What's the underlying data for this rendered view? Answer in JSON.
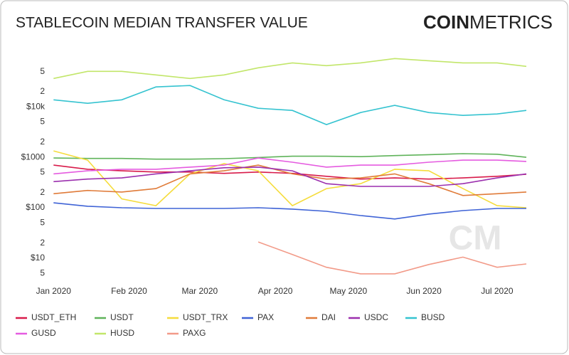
{
  "chart_data": {
    "type": "line",
    "title": "STABLECOIN MEDIAN TRANSFER VALUE",
    "logo": {
      "bold": "COIN",
      "light": "METRICS"
    },
    "watermark": "CM",
    "log_y": true,
    "grid": false,
    "x": [
      0,
      14,
      28,
      42,
      56,
      70,
      84,
      98,
      112,
      126,
      140,
      154,
      168,
      182,
      194
    ],
    "xlim": [
      -3,
      194
    ],
    "xticks": [
      {
        "value": 0,
        "label": "Jan 2020"
      },
      {
        "value": 31,
        "label": "Feb 2020"
      },
      {
        "value": 60,
        "label": "Mar 2020"
      },
      {
        "value": 91,
        "label": "Apr 2020"
      },
      {
        "value": 121,
        "label": "May 2020"
      },
      {
        "value": 152,
        "label": "Jun 2020"
      },
      {
        "value": 182,
        "label": "Jul 2020"
      }
    ],
    "ylim": [
      3,
      115000
    ],
    "yticks": [
      5,
      {
        "value": 20,
        "label": "2"
      },
      {
        "value": 50,
        "label": "5"
      },
      {
        "value": 10,
        "label": "$10"
      },
      {
        "value": 100,
        "label": "$100"
      },
      {
        "value": 200,
        "label": "2"
      },
      {
        "value": 500,
        "label": "5"
      },
      {
        "value": 1000,
        "label": "$1000"
      },
      {
        "value": 2000,
        "label": "2"
      },
      {
        "value": 5000,
        "label": "5"
      },
      {
        "value": 10000,
        "label": "$10k"
      },
      {
        "value": 20000,
        "label": "2"
      },
      {
        "value": 50000,
        "label": "5"
      }
    ],
    "series": [
      {
        "name": "USDT_ETH",
        "color": "#d81b4a",
        "values": [
          700,
          580,
          540,
          510,
          510,
          480,
          510,
          480,
          420,
          370,
          390,
          370,
          390,
          420,
          460
        ]
      },
      {
        "name": "USDT",
        "color": "#5fb35a",
        "values": [
          970,
          950,
          950,
          920,
          920,
          940,
          990,
          1050,
          1050,
          1030,
          1080,
          1130,
          1180,
          1150,
          1000
        ]
      },
      {
        "name": "USDT_TRX",
        "color": "#f5dc3c",
        "values": [
          1340,
          880,
          150,
          110,
          470,
          750,
          540,
          110,
          240,
          300,
          580,
          540,
          240,
          110,
          100
        ]
      },
      {
        "name": "PAX",
        "color": "#3f63d6",
        "values": [
          125,
          107,
          100,
          97,
          97,
          97,
          100,
          94,
          85,
          70,
          60,
          75,
          88,
          97,
          97
        ]
      },
      {
        "name": "DAI",
        "color": "#e07b39",
        "values": [
          190,
          220,
          205,
          240,
          470,
          540,
          700,
          470,
          370,
          390,
          470,
          300,
          175,
          190,
          205
        ]
      },
      {
        "name": "USDC",
        "color": "#9b2fae",
        "values": [
          330,
          370,
          390,
          470,
          540,
          620,
          640,
          540,
          300,
          265,
          265,
          265,
          300,
          390,
          470
        ]
      },
      {
        "name": "BUSD",
        "color": "#35c3d0",
        "values": [
          13800,
          11750,
          13800,
          24800,
          26500,
          13800,
          9370,
          8500,
          4450,
          7720,
          10700,
          7720,
          6770,
          7230,
          8500
        ]
      },
      {
        "name": "GUSD",
        "color": "#e55be0",
        "values": [
          470,
          540,
          580,
          580,
          640,
          700,
          970,
          800,
          640,
          700,
          700,
          800,
          880,
          880,
          830
        ]
      },
      {
        "name": "HUSD",
        "color": "#c2e66a",
        "values": [
          36600,
          50500,
          50500,
          43000,
          36600,
          43000,
          59500,
          74500,
          65600,
          74500,
          90700,
          82000,
          74500,
          74500,
          63500
        ]
      },
      {
        "name": "PAXG",
        "color": "#f29a88",
        "values": [
          null,
          null,
          null,
          null,
          null,
          null,
          21,
          11.8,
          6.6,
          4.9,
          4.9,
          7.5,
          10.5,
          6.6,
          7.7
        ]
      }
    ]
  }
}
